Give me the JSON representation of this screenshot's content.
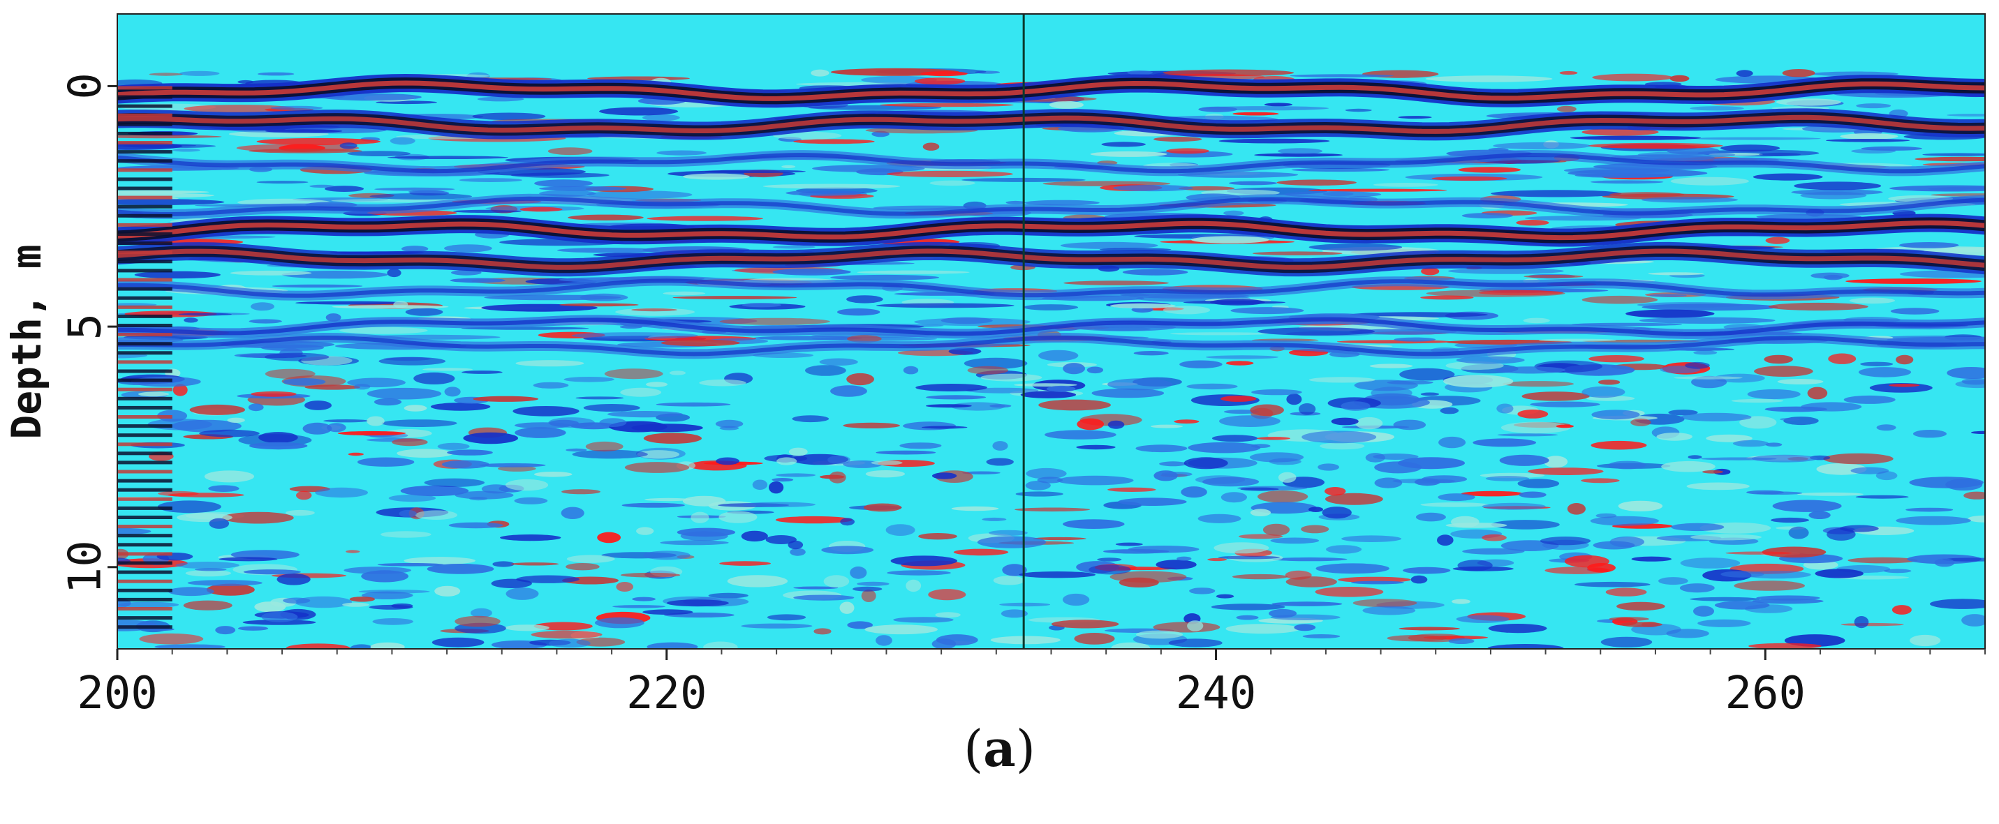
{
  "chart_data": {
    "type": "heatmap",
    "title": "",
    "xlabel": "",
    "ylabel": "Depth, m",
    "x_ticks": [
      200,
      220,
      240,
      260
    ],
    "x_tick_labels": [
      "200",
      "220",
      "240",
      "260"
    ],
    "xlim": [
      200,
      268
    ],
    "y_ticks": [
      0,
      5,
      10
    ],
    "y_tick_labels": [
      "0",
      "5",
      "10"
    ],
    "ylim": [
      -1.5,
      11.7
    ],
    "y_inverted": true,
    "grid": false,
    "vertical_marker_x": 233,
    "colormap": [
      "#0b1030",
      "#1530c8",
      "#2f6fe0",
      "#1ec8e8",
      "#39f0f5",
      "#9ae8e0",
      "#c23a3a",
      "#ff1a1a"
    ],
    "background_color": "#36e6f2",
    "reflectors": [
      {
        "depth": 0.1,
        "strength": 1.0
      },
      {
        "depth": 0.8,
        "strength": 0.85
      },
      {
        "depth": 1.6,
        "strength": 0.45
      },
      {
        "depth": 2.5,
        "strength": 0.4
      },
      {
        "depth": 3.0,
        "strength": 1.0
      },
      {
        "depth": 3.6,
        "strength": 0.8
      },
      {
        "depth": 4.2,
        "strength": 0.45
      },
      {
        "depth": 5.0,
        "strength": 0.6
      },
      {
        "depth": 5.4,
        "strength": 0.45
      }
    ]
  },
  "panel_label": {
    "open": "(",
    "letter": "a",
    "close": ")"
  }
}
